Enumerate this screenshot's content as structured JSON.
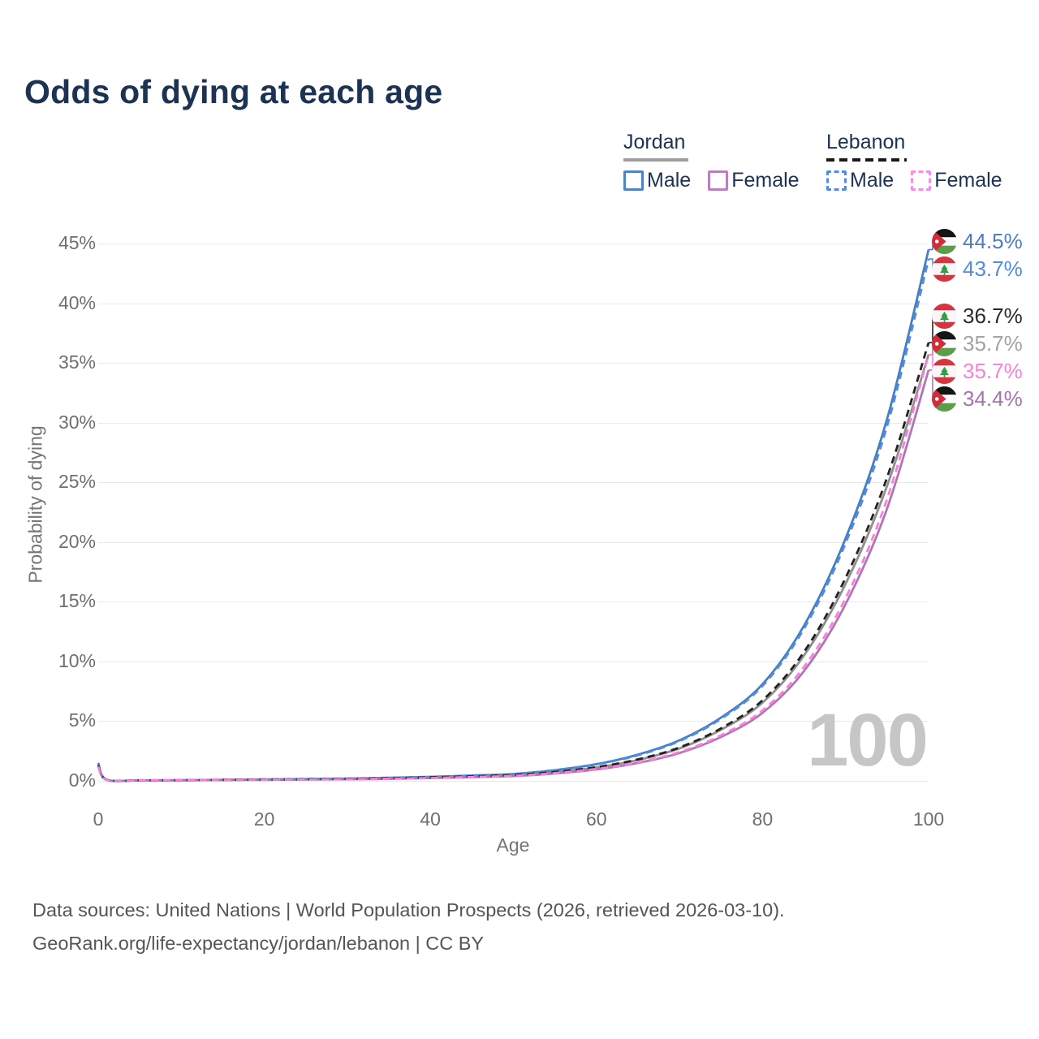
{
  "title": "Odds of dying at each age",
  "age_counter": "100",
  "legend": {
    "groups": [
      {
        "country": "Jordan",
        "line_style": "solid",
        "rule_color": "#9e9e9e",
        "items": [
          {
            "label": "Male",
            "color": "#5083c4"
          },
          {
            "label": "Female",
            "color": "#bc7ec0"
          }
        ]
      },
      {
        "country": "Lebanon",
        "line_style": "dashed",
        "rule_color": "#1a1a1a",
        "items": [
          {
            "label": "Male",
            "color": "#4f8ce9"
          },
          {
            "label": "Female",
            "color": "#ff8ae3"
          }
        ]
      }
    ]
  },
  "chart_data": {
    "type": "line",
    "title": "Odds of dying at each age",
    "xlabel": "Age",
    "ylabel": "Probability of dying",
    "xlim": [
      0,
      100
    ],
    "ylim": [
      0,
      45
    ],
    "grid": "horizontal-only",
    "x_ticks": [
      0,
      20,
      40,
      60,
      80,
      100
    ],
    "y_tick_step": 5,
    "y_ticks": [
      "0%",
      "5%",
      "10%",
      "15%",
      "20%",
      "25%",
      "30%",
      "35%",
      "40%",
      "45%"
    ],
    "x": [
      0,
      1,
      5,
      10,
      15,
      20,
      25,
      30,
      35,
      40,
      45,
      50,
      55,
      60,
      65,
      70,
      75,
      80,
      85,
      90,
      95,
      100
    ],
    "series": [
      {
        "name": "Jordan Male",
        "country": "Jordan",
        "sex": "Male",
        "style": "solid",
        "color": "#4a7ebd",
        "label_color": "#4a7ec0",
        "flag": "jordan-flag-icon",
        "end_label": "44.5%",
        "values": [
          1.5,
          0.11,
          0.05,
          0.06,
          0.09,
          0.13,
          0.16,
          0.2,
          0.26,
          0.34,
          0.45,
          0.58,
          0.9,
          1.4,
          2.2,
          3.4,
          5.3,
          8.1,
          13.0,
          20.3,
          30.3,
          44.5
        ]
      },
      {
        "name": "Lebanon Male",
        "country": "Lebanon",
        "sex": "Male",
        "style": "dashed",
        "color": "#4f8ce9",
        "label_color": "#4e8ce8",
        "flag": "lebanon-flag-icon",
        "end_label": "43.7%",
        "values": [
          1.4,
          0.1,
          0.05,
          0.06,
          0.09,
          0.12,
          0.15,
          0.19,
          0.25,
          0.33,
          0.44,
          0.57,
          0.88,
          1.37,
          2.15,
          3.33,
          5.2,
          7.95,
          12.75,
          19.9,
          29.7,
          43.7
        ]
      },
      {
        "name": "Lebanon Both sexes",
        "country": "Lebanon",
        "sex": "Both",
        "style": "dashed",
        "color": "#222222",
        "label_color": "#2a2a2a",
        "flag": "lebanon-flag-icon",
        "end_label": "36.7%",
        "values": [
          1.3,
          0.09,
          0.04,
          0.05,
          0.08,
          0.11,
          0.13,
          0.17,
          0.22,
          0.29,
          0.38,
          0.49,
          0.75,
          1.15,
          1.8,
          2.8,
          4.4,
          6.75,
          10.8,
          17.0,
          25.4,
          36.7
        ]
      },
      {
        "name": "Jordan Both sexes",
        "country": "Jordan",
        "sex": "Both",
        "style": "solid",
        "color": "#8f8f8f",
        "label_color": "#a3a3a3",
        "flag": "jordan-flag-icon",
        "end_label": "35.7%",
        "values": [
          1.35,
          0.1,
          0.04,
          0.05,
          0.08,
          0.11,
          0.13,
          0.16,
          0.21,
          0.28,
          0.37,
          0.48,
          0.73,
          1.12,
          1.75,
          2.72,
          4.28,
          6.55,
          10.5,
          16.5,
          24.7,
          35.7
        ]
      },
      {
        "name": "Lebanon Female",
        "country": "Lebanon",
        "sex": "Female",
        "style": "dashed",
        "color": "#f97fd9",
        "label_color": "#f97fd9",
        "flag": "lebanon-flag-icon",
        "end_label": "35.7%",
        "values": [
          1.2,
          0.08,
          0.04,
          0.05,
          0.07,
          0.09,
          0.11,
          0.14,
          0.18,
          0.24,
          0.32,
          0.42,
          0.65,
          1.0,
          1.55,
          2.42,
          3.82,
          5.9,
          9.55,
          15.3,
          23.6,
          35.7
        ]
      },
      {
        "name": "Jordan Female",
        "country": "Jordan",
        "sex": "Female",
        "style": "solid",
        "color": "#b274b8",
        "label_color": "#a671ae",
        "flag": "jordan-flag-icon",
        "end_label": "34.4%",
        "values": [
          1.3,
          0.09,
          0.04,
          0.05,
          0.07,
          0.09,
          0.11,
          0.13,
          0.17,
          0.23,
          0.31,
          0.4,
          0.62,
          0.96,
          1.5,
          2.33,
          3.68,
          5.7,
          9.2,
          14.8,
          22.8,
          34.4
        ]
      }
    ]
  },
  "footer": {
    "line1": "Data sources: United Nations | World Population Prospects (2026, retrieved 2026-03-10).",
    "line2": "GeoRank.org/life-expectancy/jordan/lebanon | CC BY"
  }
}
